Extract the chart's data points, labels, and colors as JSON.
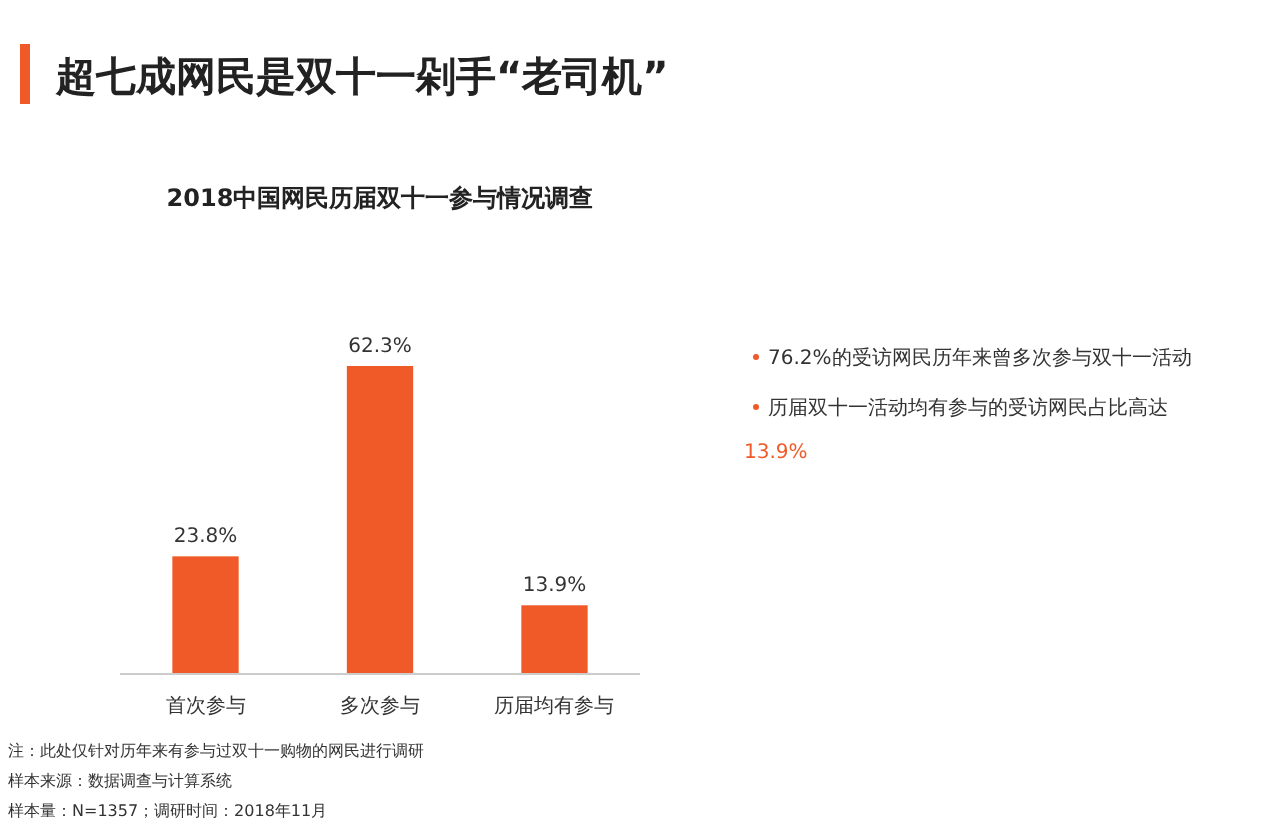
{
  "chart_data": {
    "type": "bar",
    "title": "超七成网民是双十一剁手“老司机”",
    "subtitle": "2018中国网民历届双十一参与情况调查",
    "categories": [
      "首次参与",
      "多次参与",
      "历届均有参与"
    ],
    "values": [
      23.8,
      62.3,
      13.9
    ],
    "color": "#f05a28",
    "data_labels": true,
    "value_labels": [
      "23.8%",
      "62.3%",
      "13.9%"
    ],
    "annotations": [
      "76.2%的受访网民历年来曾多次参与双十一活动",
      "历届双十一活动均有参与的受访网民占比高达13.9%",
      "注：此处仅针对历年来有参与过双十一购物的网民进行调研",
      "样本来源：数据调查与计算系统",
      "样本量：N=1357；调研时间：2018年11月"
    ]
  }
}
